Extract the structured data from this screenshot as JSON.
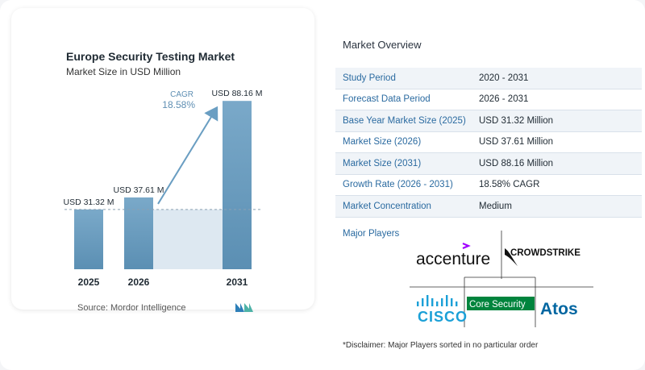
{
  "chart_data": {
    "type": "bar",
    "title": "Europe Security Testing Market",
    "subtitle": "Market Size in USD Million",
    "categories": [
      "2025",
      "2026",
      "2031"
    ],
    "values": [
      31.32,
      37.61,
      88.16
    ],
    "data_labels": [
      "USD 31.32 M",
      "USD 37.61 M",
      "USD 88.16 M"
    ],
    "cagr_label": "CAGR",
    "cagr_value": "18.58%",
    "ylim": [
      0,
      95
    ],
    "colors": {
      "bar_top": "#7aa9c9",
      "bar_bottom": "#5b8fb3",
      "shade": "#dde8f1",
      "arrow": "#6a9ec2"
    }
  },
  "source": "Source:  Mordor Intelligence",
  "overview": {
    "title": "Market Overview",
    "rows": [
      {
        "label": "Study Period",
        "value": "2020 - 2031"
      },
      {
        "label": "Forecast Data Period",
        "value": "2026 - 2031"
      },
      {
        "label": "Base Year Market Size (2025)",
        "value": "USD 31.32 Million"
      },
      {
        "label": "Market Size (2026)",
        "value": "USD 37.61 Million"
      },
      {
        "label": "Market Size (2031)",
        "value": "USD 88.16 Million"
      },
      {
        "label": "Growth Rate (2026 - 2031)",
        "value": "18.58% CAGR"
      },
      {
        "label": "Market Concentration",
        "value": "Medium"
      }
    ],
    "major_players_label": "Major Players",
    "players": [
      "accenture",
      "CROWDSTRIKE",
      "CISCO",
      "Core Security",
      "Atos"
    ]
  },
  "disclaimer": "*Disclaimer: Major Players sorted in no particular order"
}
